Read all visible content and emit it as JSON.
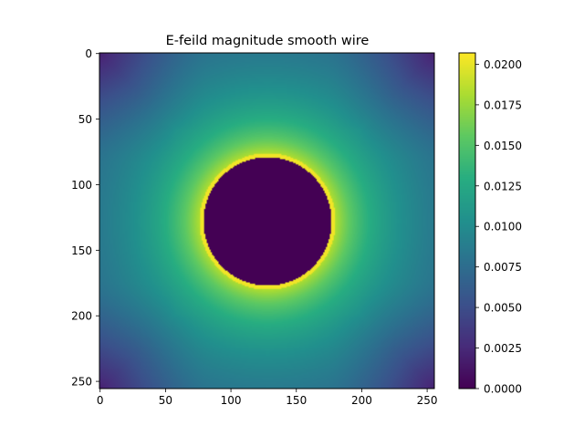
{
  "chart_data": {
    "type": "heatmap",
    "title": "E-feild magnitude smooth wire",
    "xlabel": "",
    "ylabel": "",
    "colormap": "viridis",
    "grid": false,
    "x_range": [
      0,
      255
    ],
    "y_range": [
      255,
      0
    ],
    "x_ticks": [
      0,
      50,
      100,
      150,
      200,
      250
    ],
    "y_ticks": [
      0,
      50,
      100,
      150,
      200,
      250
    ],
    "colorbar": {
      "range": [
        0.0,
        0.0207
      ],
      "ticks": [
        "0.0000",
        "0.0025",
        "0.0050",
        "0.0075",
        "0.0100",
        "0.0125",
        "0.0150",
        "0.0175",
        "0.0200"
      ],
      "tick_values": [
        0.0,
        0.0025,
        0.005,
        0.0075,
        0.01,
        0.0125,
        0.015,
        0.0175,
        0.02
      ]
    },
    "field": {
      "description": "Radial E-field magnitude around a wire of radius ~50 centered at (128,128); zero inside, peak at surface, decaying outward.",
      "center": [
        128,
        128
      ],
      "wire_radius": 50,
      "value_inside": 0.0,
      "value_at_surface": 0.0207,
      "value_at_edge_midpoint": 0.0085,
      "value_at_corner": 0.0018
    }
  }
}
